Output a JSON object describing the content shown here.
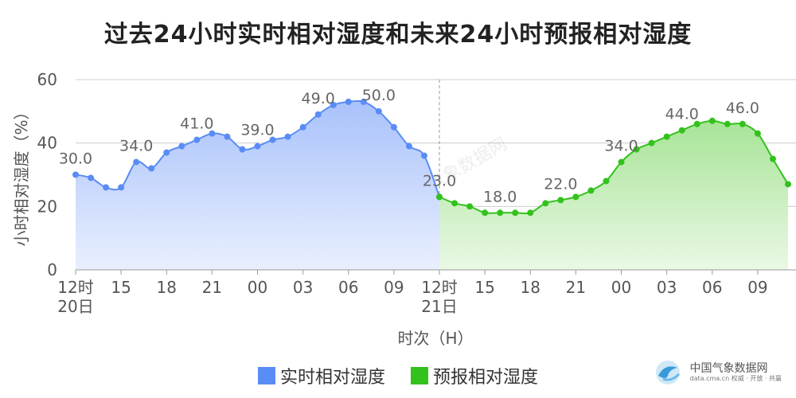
{
  "chart_data": {
    "type": "area",
    "title": "过去24小时实时相对湿度和未来24小时预报相对湿度",
    "xlabel": "时次（H）",
    "ylabel": "小时相对湿度（%）",
    "ylim": [
      0,
      60
    ],
    "yticks": [
      "0",
      "20",
      "40",
      "60"
    ],
    "grid": true,
    "legend_position": "bottom",
    "x_tick_labels": [
      {
        "i": 0,
        "l1": "12时",
        "l2": "20日"
      },
      {
        "i": 3,
        "l1": "15"
      },
      {
        "i": 6,
        "l1": "18"
      },
      {
        "i": 9,
        "l1": "21"
      },
      {
        "i": 12,
        "l1": "00"
      },
      {
        "i": 15,
        "l1": "03"
      },
      {
        "i": 18,
        "l1": "06"
      },
      {
        "i": 21,
        "l1": "09"
      },
      {
        "i": 24,
        "l1": "12时",
        "l2": "21日"
      },
      {
        "i": 27,
        "l1": "15"
      },
      {
        "i": 30,
        "l1": "18"
      },
      {
        "i": 33,
        "l1": "21"
      },
      {
        "i": 36,
        "l1": "00"
      },
      {
        "i": 39,
        "l1": "03"
      },
      {
        "i": 42,
        "l1": "06"
      },
      {
        "i": 45,
        "l1": "09"
      }
    ],
    "series": [
      {
        "name": "实时相对湿度",
        "color": "#5a8cf5",
        "start_index": 0,
        "values": [
          30,
          29,
          26,
          26,
          34,
          32,
          37,
          39,
          41,
          43,
          42,
          38,
          39,
          41,
          42,
          45,
          49,
          52,
          53,
          53,
          50,
          45,
          39,
          36,
          23
        ],
        "labels": [
          {
            "i": 0,
            "text": "30.0"
          },
          {
            "i": 4,
            "text": "34.0"
          },
          {
            "i": 8,
            "text": "41.0"
          },
          {
            "i": 12,
            "text": "39.0"
          },
          {
            "i": 16,
            "text": "49.0"
          },
          {
            "i": 20,
            "text": "50.0"
          }
        ]
      },
      {
        "name": "预报相对湿度",
        "color": "#33c21c",
        "start_index": 24,
        "values": [
          23,
          21,
          20,
          18,
          18,
          18,
          18,
          21,
          22,
          23,
          25,
          28,
          34,
          38,
          40,
          42,
          44,
          46,
          47,
          46,
          46,
          43,
          35,
          27
        ],
        "labels": [
          {
            "i": 24,
            "text": "23.0"
          },
          {
            "i": 28,
            "text": "18.0"
          },
          {
            "i": 32,
            "text": "22.0"
          },
          {
            "i": 36,
            "text": "34.0"
          },
          {
            "i": 40,
            "text": "44.0"
          },
          {
            "i": 44,
            "text": "46.0"
          }
        ]
      }
    ]
  },
  "branding": {
    "watermark": "中国气象数据网",
    "logo_name": "中国气象数据网",
    "logo_url": "data.cma.cn 权威 · 开放 · 共赢"
  }
}
